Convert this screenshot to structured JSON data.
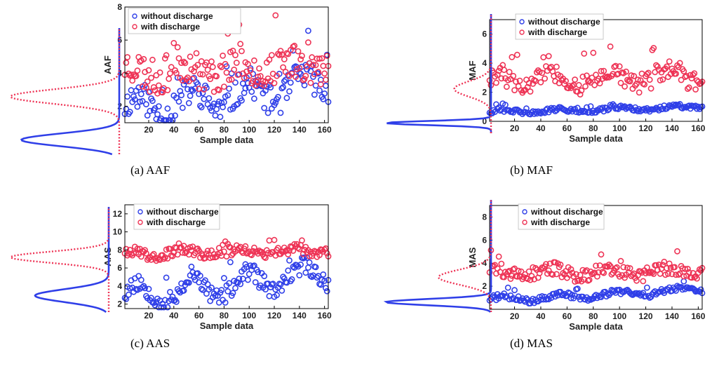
{
  "colors": {
    "without": "#2f3fe8",
    "with": "#ee3355"
  },
  "chart_data": [
    {
      "id": "aaf",
      "type": "scatter",
      "caption": "(a) AAF",
      "xlabel": "Sample data",
      "ylabel": "AAF",
      "xlim": [
        1,
        163
      ],
      "ylim": [
        1,
        8
      ],
      "xticks": [
        20,
        40,
        60,
        80,
        100,
        120,
        140,
        160
      ],
      "yticks": [
        2,
        4,
        6,
        8
      ],
      "legend": {
        "position": "top-left",
        "entries": [
          "without discharge",
          "with discharge"
        ]
      },
      "series": [
        {
          "name": "without discharge",
          "color": "without",
          "mean": 1.9,
          "amp": 0.7,
          "trend": 1.6,
          "noise": 0.9,
          "seed": 11
        },
        {
          "name": "with discharge",
          "color": "with",
          "mean": 4.1,
          "amp": 0.4,
          "trend": 0.4,
          "noise": 1.1,
          "seed": 23
        }
      ],
      "marginal": {
        "without": {
          "peak": 1.8,
          "sigma": 0.35,
          "height": 0.9
        },
        "with": {
          "peak": 4.2,
          "sigma": 0.4,
          "height": 1.0
        }
      }
    },
    {
      "id": "maf",
      "type": "scatter",
      "caption": "(b) MAF",
      "xlabel": "Sample data",
      "ylabel": "MAF",
      "xlim": [
        1,
        163
      ],
      "ylim": [
        0,
        7
      ],
      "xticks": [
        20,
        40,
        60,
        80,
        100,
        120,
        140,
        160
      ],
      "yticks": [
        0,
        2,
        4,
        6
      ],
      "legend": {
        "position": "top-right",
        "entries": [
          "without discharge",
          "with discharge"
        ]
      },
      "series": [
        {
          "name": "without discharge",
          "color": "without",
          "mean": 0.65,
          "amp": 0.1,
          "trend": 0.35,
          "noise": 0.15,
          "seed": 31
        },
        {
          "name": "with discharge",
          "color": "with",
          "mean": 2.8,
          "amp": 0.4,
          "trend": 0.3,
          "noise": 0.7,
          "seed": 47
        }
      ],
      "marginal": {
        "without": {
          "peak": 0.6,
          "sigma": 0.12,
          "height": 1.0
        },
        "with": {
          "peak": 2.6,
          "sigma": 0.45,
          "height": 0.35
        }
      }
    },
    {
      "id": "aas",
      "type": "scatter",
      "caption": "(c) AAS",
      "xlabel": "Sample data",
      "ylabel": "AAS",
      "xlim": [
        1,
        163
      ],
      "ylim": [
        1.5,
        13
      ],
      "xticks": [
        20,
        40,
        60,
        80,
        100,
        120,
        140,
        160
      ],
      "yticks": [
        2,
        4,
        6,
        8,
        10,
        12
      ],
      "legend": {
        "position": "top-right",
        "entries": [
          "without discharge",
          "with discharge"
        ]
      },
      "series": [
        {
          "name": "without discharge",
          "color": "without",
          "mean": 3.0,
          "amp": 1.2,
          "trend": 2.5,
          "noise": 1.0,
          "seed": 53
        },
        {
          "name": "with discharge",
          "color": "with",
          "mean": 7.6,
          "amp": 0.3,
          "trend": 0.3,
          "noise": 0.55,
          "seed": 67
        }
      ],
      "marginal": {
        "without": {
          "peak": 3.3,
          "sigma": 0.7,
          "height": 0.75
        },
        "with": {
          "peak": 7.5,
          "sigma": 0.6,
          "height": 1.0
        }
      }
    },
    {
      "id": "mas",
      "type": "scatter",
      "caption": "(d) MAS",
      "xlabel": "Sample data",
      "ylabel": "MAS",
      "xlim": [
        1,
        163
      ],
      "ylim": [
        0,
        9
      ],
      "xticks": [
        20,
        40,
        60,
        80,
        100,
        120,
        140,
        160
      ],
      "yticks": [
        2,
        4,
        6,
        8
      ],
      "legend": {
        "position": "top-right",
        "entries": [
          "without discharge",
          "with discharge"
        ]
      },
      "series": [
        {
          "name": "without discharge",
          "color": "without",
          "mean": 0.85,
          "amp": 0.25,
          "trend": 0.9,
          "noise": 0.25,
          "seed": 71
        },
        {
          "name": "with discharge",
          "color": "with",
          "mean": 3.2,
          "amp": 0.3,
          "trend": 0.1,
          "noise": 0.6,
          "seed": 89
        }
      ],
      "marginal": {
        "without": {
          "peak": 0.8,
          "sigma": 0.25,
          "height": 1.0
        },
        "with": {
          "peak": 2.8,
          "sigma": 0.6,
          "height": 0.5
        }
      }
    }
  ]
}
